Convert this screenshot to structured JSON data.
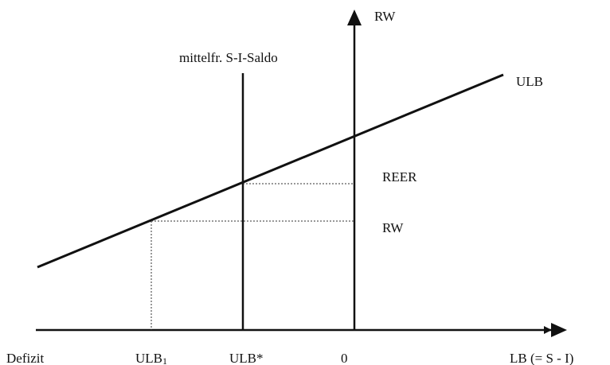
{
  "labels": {
    "y_axis": "RW",
    "vertical_line": "mittelfr. S-I-Saldo",
    "curve": "ULB",
    "reer": "REER",
    "rw": "RW",
    "x_left": "Defizit",
    "ulb1": {
      "text": "ULB",
      "subscript": "1"
    },
    "ulb_star": "ULB*",
    "zero": "0",
    "x_axis": "LB (= S - I)"
  }
}
